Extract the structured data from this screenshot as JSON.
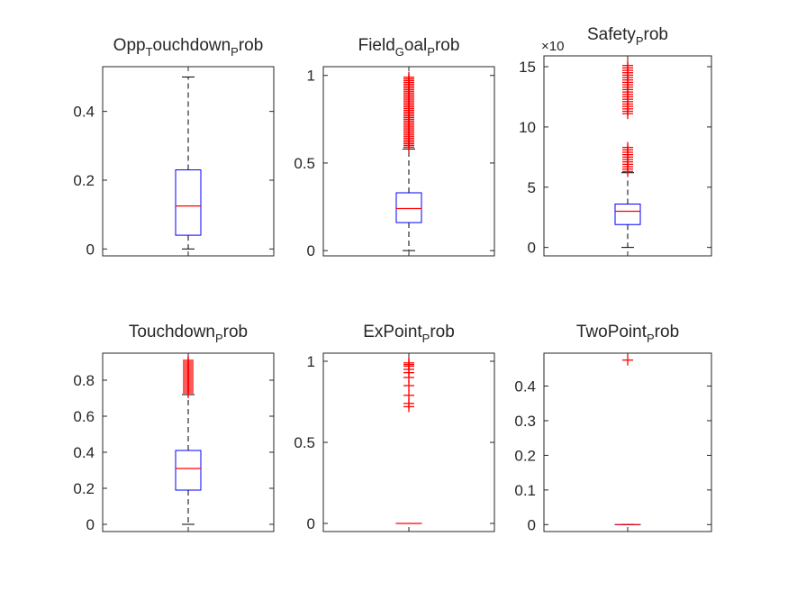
{
  "figure": {
    "background": "#ffffff"
  },
  "chart_data": [
    {
      "type": "boxplot",
      "title_parts": [
        [
          "Opp",
          ""
        ],
        [
          "T",
          "sub"
        ],
        [
          "ouchdown",
          ""
        ],
        [
          "P",
          "sub"
        ],
        [
          "rob",
          ""
        ]
      ],
      "ylim": [
        -0.02,
        0.53
      ],
      "yticks": [
        0,
        0.2,
        0.4
      ],
      "ytick_labels": [
        "0",
        "0.2",
        "0.4"
      ],
      "exponent": "",
      "box": {
        "q1": 0.04,
        "median": 0.125,
        "q3": 0.23,
        "whisker_low": 0.0,
        "whisker_high": 0.5
      },
      "outliers": []
    },
    {
      "type": "boxplot",
      "title_parts": [
        [
          "Field",
          ""
        ],
        [
          "G",
          "sub"
        ],
        [
          "oal",
          ""
        ],
        [
          "P",
          "sub"
        ],
        [
          "rob",
          ""
        ]
      ],
      "ylim": [
        -0.03,
        1.05
      ],
      "yticks": [
        0,
        0.5,
        1
      ],
      "ytick_labels": [
        "0",
        "0.5",
        "1"
      ],
      "exponent": "",
      "box": {
        "q1": 0.16,
        "median": 0.24,
        "q3": 0.33,
        "whisker_low": 0.0,
        "whisker_high": 0.58
      },
      "outliers": [
        0.59,
        0.6,
        0.61,
        0.62,
        0.63,
        0.64,
        0.65,
        0.66,
        0.67,
        0.68,
        0.69,
        0.7,
        0.71,
        0.72,
        0.73,
        0.74,
        0.75,
        0.76,
        0.77,
        0.78,
        0.79,
        0.8,
        0.81,
        0.82,
        0.83,
        0.84,
        0.85,
        0.86,
        0.87,
        0.88,
        0.89,
        0.9,
        0.91,
        0.92,
        0.93,
        0.94,
        0.95,
        0.96,
        0.97,
        0.98,
        0.99
      ]
    },
    {
      "type": "boxplot",
      "title_parts": [
        [
          "Safety",
          ""
        ],
        [
          "P",
          "sub"
        ],
        [
          "rob",
          ""
        ]
      ],
      "ylim": [
        -0.7,
        15.9
      ],
      "yticks": [
        0,
        5,
        10,
        15
      ],
      "ytick_labels": [
        "0",
        "5",
        "10",
        "15"
      ],
      "exponent": "×10",
      "box": {
        "q1": 1.9,
        "median": 3.0,
        "q3": 3.6,
        "whisker_low": 0.0,
        "whisker_high": 6.2
      },
      "outliers": [
        6.3,
        6.5,
        6.7,
        6.9,
        7.1,
        7.3,
        7.5,
        7.7,
        7.9,
        8.1,
        8.3,
        11.1,
        11.3,
        11.5,
        11.7,
        11.9,
        12.1,
        12.3,
        12.5,
        12.7,
        12.9,
        13.1,
        13.3,
        13.5,
        13.7,
        13.9,
        14.1,
        14.3,
        14.5,
        14.7,
        14.9,
        15.1
      ]
    },
    {
      "type": "boxplot",
      "title_parts": [
        [
          "Touchdown",
          ""
        ],
        [
          "P",
          "sub"
        ],
        [
          "rob",
          ""
        ]
      ],
      "ylim": [
        -0.04,
        0.95
      ],
      "yticks": [
        0,
        0.2,
        0.4,
        0.6,
        0.8
      ],
      "ytick_labels": [
        "0",
        "0.2",
        "0.4",
        "0.6",
        "0.8"
      ],
      "exponent": "",
      "box": {
        "q1": 0.19,
        "median": 0.31,
        "q3": 0.41,
        "whisker_low": 0.0,
        "whisker_high": 0.72
      },
      "outliers": [
        0.73,
        0.74,
        0.75,
        0.76,
        0.77,
        0.78,
        0.79,
        0.8,
        0.81,
        0.82,
        0.83,
        0.84,
        0.85,
        0.86,
        0.87,
        0.88,
        0.89,
        0.9,
        0.91
      ]
    },
    {
      "type": "boxplot",
      "title_parts": [
        [
          "ExPoint",
          ""
        ],
        [
          "P",
          "sub"
        ],
        [
          "rob",
          ""
        ]
      ],
      "ylim": [
        -0.05,
        1.05
      ],
      "yticks": [
        0,
        0.5,
        1
      ],
      "ytick_labels": [
        "0",
        "0.5",
        "1"
      ],
      "exponent": "",
      "box": {
        "q1": 0.0,
        "median": 0.0,
        "q3": 0.0,
        "whisker_low": 0.0,
        "whisker_high": 0.0
      },
      "outliers": [
        0.72,
        0.74,
        0.79,
        0.85,
        0.9,
        0.93,
        0.95,
        0.97,
        0.98,
        0.99
      ]
    },
    {
      "type": "boxplot",
      "title_parts": [
        [
          "TwoPoint",
          ""
        ],
        [
          "P",
          "sub"
        ],
        [
          "rob",
          ""
        ]
      ],
      "ylim": [
        -0.02,
        0.495
      ],
      "yticks": [
        0,
        0.1,
        0.2,
        0.3,
        0.4
      ],
      "ytick_labels": [
        "0",
        "0.1",
        "0.2",
        "0.3",
        "0.4"
      ],
      "exponent": "",
      "box": {
        "q1": 0.0,
        "median": 0.0,
        "q3": 0.0,
        "whisker_low": 0.0,
        "whisker_high": 0.0
      },
      "outliers": [
        0.475
      ]
    }
  ],
  "style": {
    "box_color": "#0000ff",
    "median_color": "#ff0000",
    "outlier_color": "#ff0000",
    "whisker_color": "#000000",
    "axis_color": "#262626"
  }
}
